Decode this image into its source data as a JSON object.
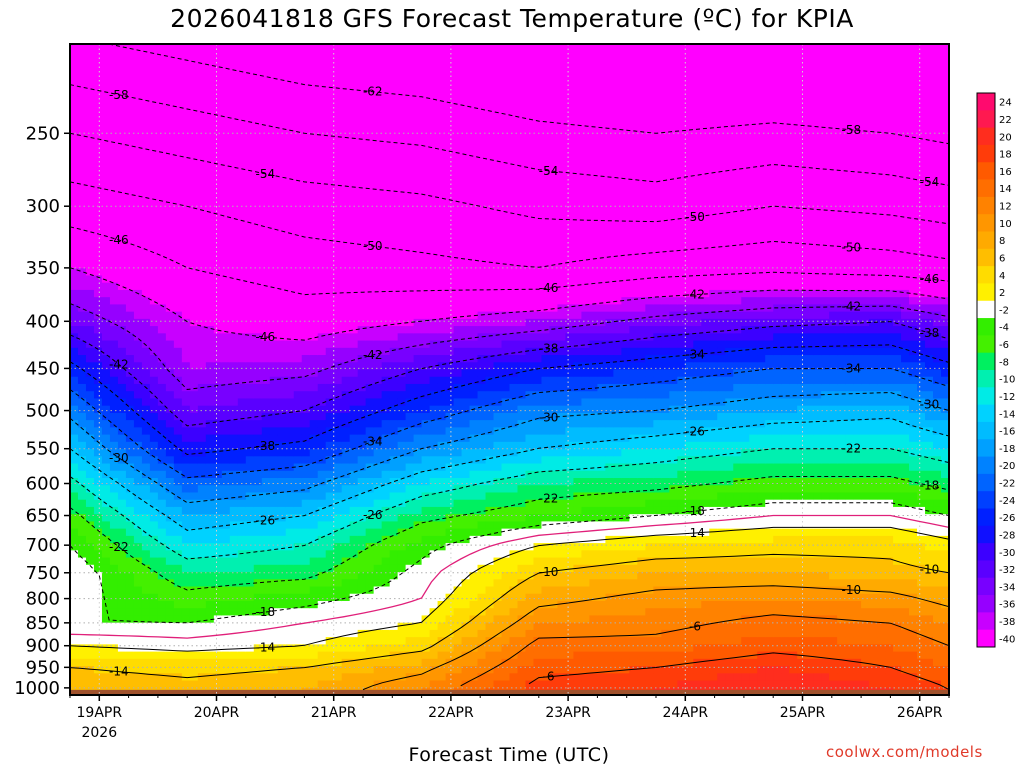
{
  "chart_data": {
    "type": "heatmap",
    "title": "2026041818 GFS Forecast Temperature (ºC) for KPIA",
    "xlabel": "Forecast Time (UTC)",
    "ylabel": "",
    "y_scale": "log-pressure",
    "ylim": [
      1000,
      200
    ],
    "y_ticks": [
      250,
      300,
      350,
      400,
      450,
      500,
      550,
      600,
      650,
      700,
      750,
      800,
      850,
      900,
      950,
      1000
    ],
    "x_ticks": [
      {
        "label": "19APR",
        "sublabel": "2026",
        "t": 6
      },
      {
        "label": "20APR",
        "t": 30
      },
      {
        "label": "21APR",
        "t": 54
      },
      {
        "label": "22APR",
        "t": 78
      },
      {
        "label": "23APR",
        "t": 102
      },
      {
        "label": "24APR",
        "t": 126
      },
      {
        "label": "25APR",
        "t": 150
      },
      {
        "label": "26APR",
        "t": 174
      }
    ],
    "xlim_hours": [
      0,
      180
    ],
    "grid": true,
    "colorbar": {
      "position": "right",
      "levels": [
        24,
        22,
        20,
        18,
        16,
        14,
        12,
        10,
        8,
        6,
        4,
        2,
        -2,
        -4,
        -6,
        -8,
        -10,
        -12,
        -14,
        -16,
        -18,
        -20,
        -22,
        -24,
        -26,
        -28,
        -30,
        -32,
        -34,
        -36,
        -38,
        -40
      ],
      "colors": [
        "#ff0a6e",
        "#ff1950",
        "#ff2d1e",
        "#ff3c0a",
        "#ff5a00",
        "#ff6e00",
        "#ff8200",
        "#ff9600",
        "#ffaa00",
        "#ffbe00",
        "#ffdc00",
        "#fff000",
        "#ffffff",
        "#33ee00",
        "#44f000",
        "#00f060",
        "#00f0b0",
        "#00ebe6",
        "#00d2ff",
        "#00bcff",
        "#00a0ff",
        "#0082ff",
        "#0064ff",
        "#0040ff",
        "#0020ff",
        "#1010ff",
        "#3c00ff",
        "#5a00ff",
        "#7800ff",
        "#9600ff",
        "#c800ff",
        "#ff00ff"
      ]
    },
    "zero_line_color": "#e0207a",
    "series": [
      {
        "level": 250,
        "values": [
          -50,
          -52,
          -54,
          -55,
          -57,
          -58,
          -57,
          -58,
          -59
        ]
      },
      {
        "level": 300,
        "values": [
          -44,
          -46,
          -48,
          -49,
          -51,
          -52,
          -50,
          -51,
          -52
        ]
      },
      {
        "level": 350,
        "values": [
          -38,
          -42,
          -44,
          -45,
          -46,
          -44,
          -43,
          -44,
          -45
        ]
      },
      {
        "level": 400,
        "values": [
          -32,
          -38,
          -40,
          -38,
          -36,
          -33,
          -31,
          -30,
          -33
        ]
      },
      {
        "level": 450,
        "values": [
          -25,
          -36,
          -35,
          -30,
          -26,
          -24,
          -22,
          -22,
          -25
        ]
      },
      {
        "level": 500,
        "values": [
          -19,
          -32,
          -30,
          -24,
          -19,
          -18,
          -16,
          -15,
          -18
        ]
      },
      {
        "level": 550,
        "values": [
          -14,
          -27,
          -25,
          -18,
          -14,
          -12,
          -10,
          -10,
          -12
        ]
      },
      {
        "level": 600,
        "values": [
          -9,
          -21,
          -19,
          -12,
          -8,
          -7,
          -5,
          -5,
          -7
        ]
      },
      {
        "level": 650,
        "values": [
          -5,
          -16,
          -14,
          -7,
          -4,
          -2,
          0,
          0,
          -2
        ]
      },
      {
        "level": 700,
        "values": [
          -2,
          -12,
          -10,
          -3,
          2,
          4,
          5,
          5,
          3
        ]
      },
      {
        "level": 750,
        "values": [
          0,
          -8,
          -7,
          -1,
          6,
          8,
          8,
          7,
          6
        ]
      },
      {
        "level": 800,
        "values": [
          -1,
          -5,
          -3,
          0,
          9,
          11,
          12,
          11,
          9
        ]
      },
      {
        "level": 850,
        "values": [
          -2,
          -2,
          0,
          2,
          12,
          13,
          15,
          14,
          12
        ]
      },
      {
        "level": 900,
        "values": [
          2,
          1,
          2,
          5,
          15,
          15,
          17,
          16,
          14
        ]
      },
      {
        "level": 950,
        "values": [
          6,
          5,
          6,
          9,
          17,
          18,
          20,
          18,
          16
        ]
      },
      {
        "level": 1000,
        "values": [
          8,
          7,
          8,
          12,
          19,
          20,
          22,
          20,
          18
        ]
      }
    ],
    "series_hours": [
      0,
      24,
      48,
      72,
      96,
      120,
      144,
      168,
      180
    ],
    "contour_labels": [
      "-62",
      "-58",
      "-58",
      "-54",
      "-54",
      "-54",
      "-50",
      "-50",
      "-50",
      "-46",
      "-46",
      "-46",
      "-46",
      "-42",
      "-42",
      "-42",
      "-42",
      "-38",
      "-38",
      "-38",
      "-34",
      "-34",
      "-34",
      "-30",
      "-30",
      "-30",
      "-26",
      "-26",
      "-26",
      "-22",
      "-22",
      "-22",
      "-18",
      "-18",
      "-18",
      "-14",
      "-14",
      "-14",
      "-10",
      "-10",
      "-10",
      "-6",
      "-6",
      "-6",
      "2",
      "2",
      "2",
      "2",
      "6",
      "6",
      "6",
      "10",
      "10",
      "10",
      "14",
      "14",
      "-38",
      "-34",
      "-30",
      "-26",
      "-22",
      "-18",
      "-14",
      "-10",
      "-6",
      "2",
      "2",
      "-46",
      "-42"
    ]
  },
  "watermark": "coolwx.com/models"
}
